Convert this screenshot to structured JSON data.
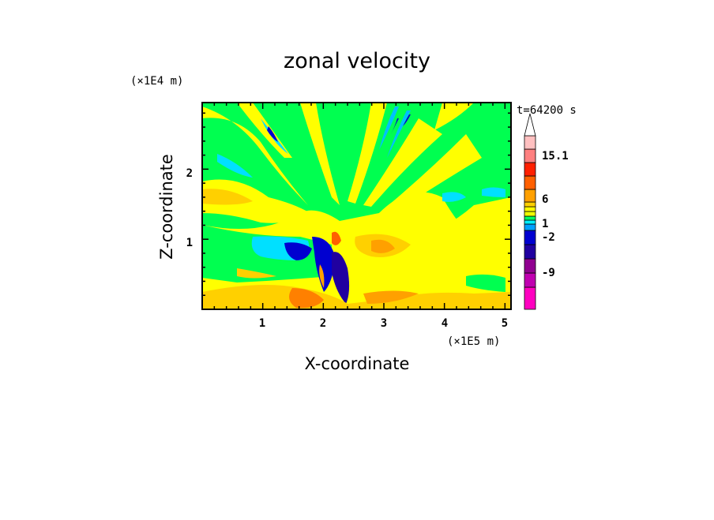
{
  "chart_data": {
    "type": "heatmap",
    "title": "zonal velocity",
    "xlabel": "X-coordinate",
    "ylabel": "Z-coordinate",
    "x_unit": "(×1E5 m)",
    "y_unit": "(×1E4 m)",
    "time_label": "t=64200 s",
    "xlim": [
      0,
      5.1
    ],
    "ylim": [
      0,
      2.95
    ],
    "x_ticks": [
      "1",
      "2",
      "3",
      "4",
      "5"
    ],
    "y_ticks": [
      "1",
      "2"
    ],
    "colorbar": {
      "labels": [
        "15.1",
        "6",
        "1",
        "-2",
        "-9"
      ],
      "colors": [
        "#ff00c0",
        "#c000b0",
        "#900090",
        "#2000a0",
        "#0000d0",
        "#00a0ff",
        "#00f0ff",
        "#00ff60",
        "#f0ff00",
        "#ffff00",
        "#ffd000",
        "#ffa000",
        "#ff6000",
        "#ff2000",
        "#ff8080",
        "#ffc0c0",
        "#ffffff"
      ]
    }
  }
}
